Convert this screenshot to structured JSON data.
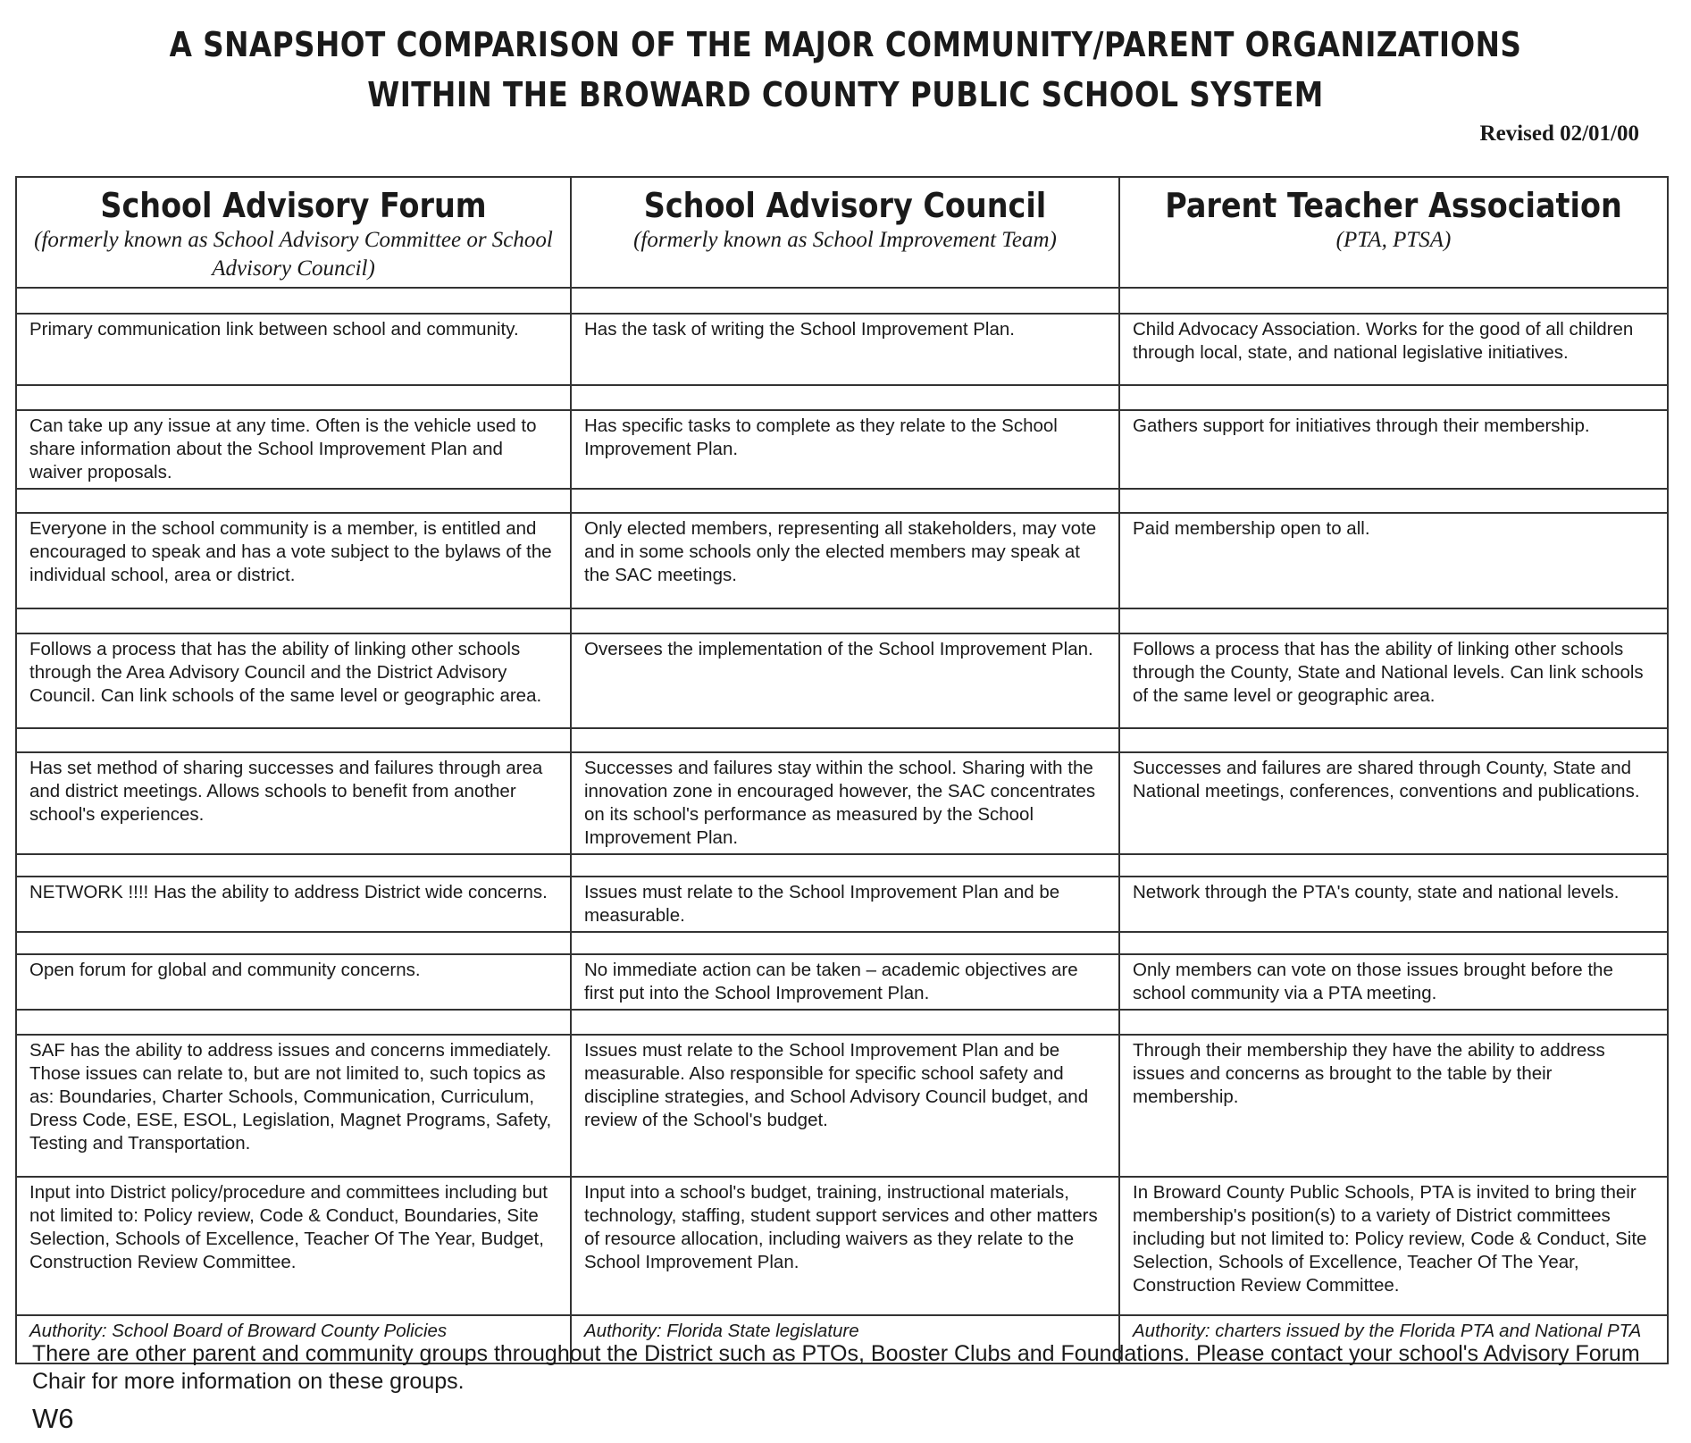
{
  "title_line1": "A SNAPSHOT COMPARISON OF THE MAJOR COMMUNITY/PARENT ORGANIZATIONS",
  "title_line2": "WITHIN THE BROWARD COUNTY PUBLIC SCHOOL SYSTEM",
  "revised": "Revised 02/01/00",
  "columns": [
    {
      "name": "School Advisory Forum",
      "sub": "(formerly known as School Advisory Committee or School Advisory Council)"
    },
    {
      "name": "School Advisory Council",
      "sub": "(formerly known as School Improvement Team)"
    },
    {
      "name": "Parent Teacher Association",
      "sub": "(PTA, PTSA)"
    }
  ],
  "rows": [
    [
      "Primary communication link between school and community.",
      "Has the task of writing the School Improvement Plan.",
      "Child Advocacy Association.  Works for the good of all children through local, state, and national legislative initiatives."
    ],
    [
      "Can take up any issue at any time.  Often is the vehicle used to share information about the School Improvement Plan and waiver proposals.",
      "Has specific tasks to complete as they relate to the School Improvement Plan.",
      "Gathers support for initiatives through their membership."
    ],
    [
      "Everyone in the school community is a member, is entitled and encouraged to speak and has a vote subject to the bylaws of the individual school, area or district.",
      "Only elected members, representing all stakeholders, may vote and in some schools only the elected members may speak at the SAC meetings.",
      "Paid membership open to all."
    ],
    [
      "Follows a process that has the ability of linking other schools through the Area Advisory Council and the District Advisory Council.  Can link schools of the same level or geographic area.",
      "Oversees the implementation of the School Improvement Plan.",
      "Follows a process that has the ability of linking other schools through the County, State and National levels.  Can link schools of the same level or geographic area."
    ],
    [
      "Has set method of sharing successes and failures through area and district meetings.  Allows schools to benefit from another school's experiences.",
      "Successes and failures stay within the school.  Sharing with the innovation zone in encouraged however, the SAC concentrates on its school's performance as measured by the School Improvement Plan.",
      "Successes and failures are shared through County, State and National meetings, conferences, conventions and publications."
    ],
    [
      "NETWORK !!!!     Has the ability to address District wide concerns.",
      "Issues must relate to the School Improvement Plan and be measurable.",
      "Network through the PTA's county, state and national levels."
    ],
    [
      "Open forum for global and community concerns.",
      "No immediate action can be taken – academic objectives are first put into the School Improvement Plan.",
      "Only members can vote on those issues brought before the school community via a PTA meeting."
    ],
    [
      "SAF has the ability to address issues and concerns immediately.  Those issues can relate to, but are not limited to, such topics as as: Boundaries, Charter Schools, Communication, Curriculum, Dress Code, ESE, ESOL, Legislation, Magnet Programs, Safety, Testing and Transportation.",
      "Issues must relate to the School Improvement Plan and be measurable.  Also responsible for specific school safety and discipline strategies, and School Advisory Council budget, and review of the School's budget.",
      "Through their membership they have the  ability to address issues and concerns as brought to the table by their membership."
    ],
    [
      "Input into District policy/procedure and committees including but not limited to: Policy review, Code & Conduct, Boundaries, Site Selection, Schools of Excellence, Teacher Of The Year, Budget, Construction Review Committee.",
      "Input into a school's budget, training, instructional materials, technology, staffing, student support services and other matters of resource allocation, including waivers as they relate to the School Improvement Plan.",
      "In Broward County Public Schools, PTA is invited to bring their membership's position(s) to a variety of District committees including but not limited to: Policy review, Code & Conduct, Site Selection, Schools of Excellence, Teacher Of The Year, Construction Review Committee."
    ]
  ],
  "authority": [
    "Authority: School Board of Broward County Policies",
    "Authority: Florida State legislature",
    "Authority: charters issued by the Florida PTA and National PTA"
  ],
  "footer": "There are other parent and community groups throughout the District such as PTOs, Booster Clubs and Foundations.  Please contact your school's Advisory Forum Chair for more information on these groups.",
  "page_code": "W6"
}
